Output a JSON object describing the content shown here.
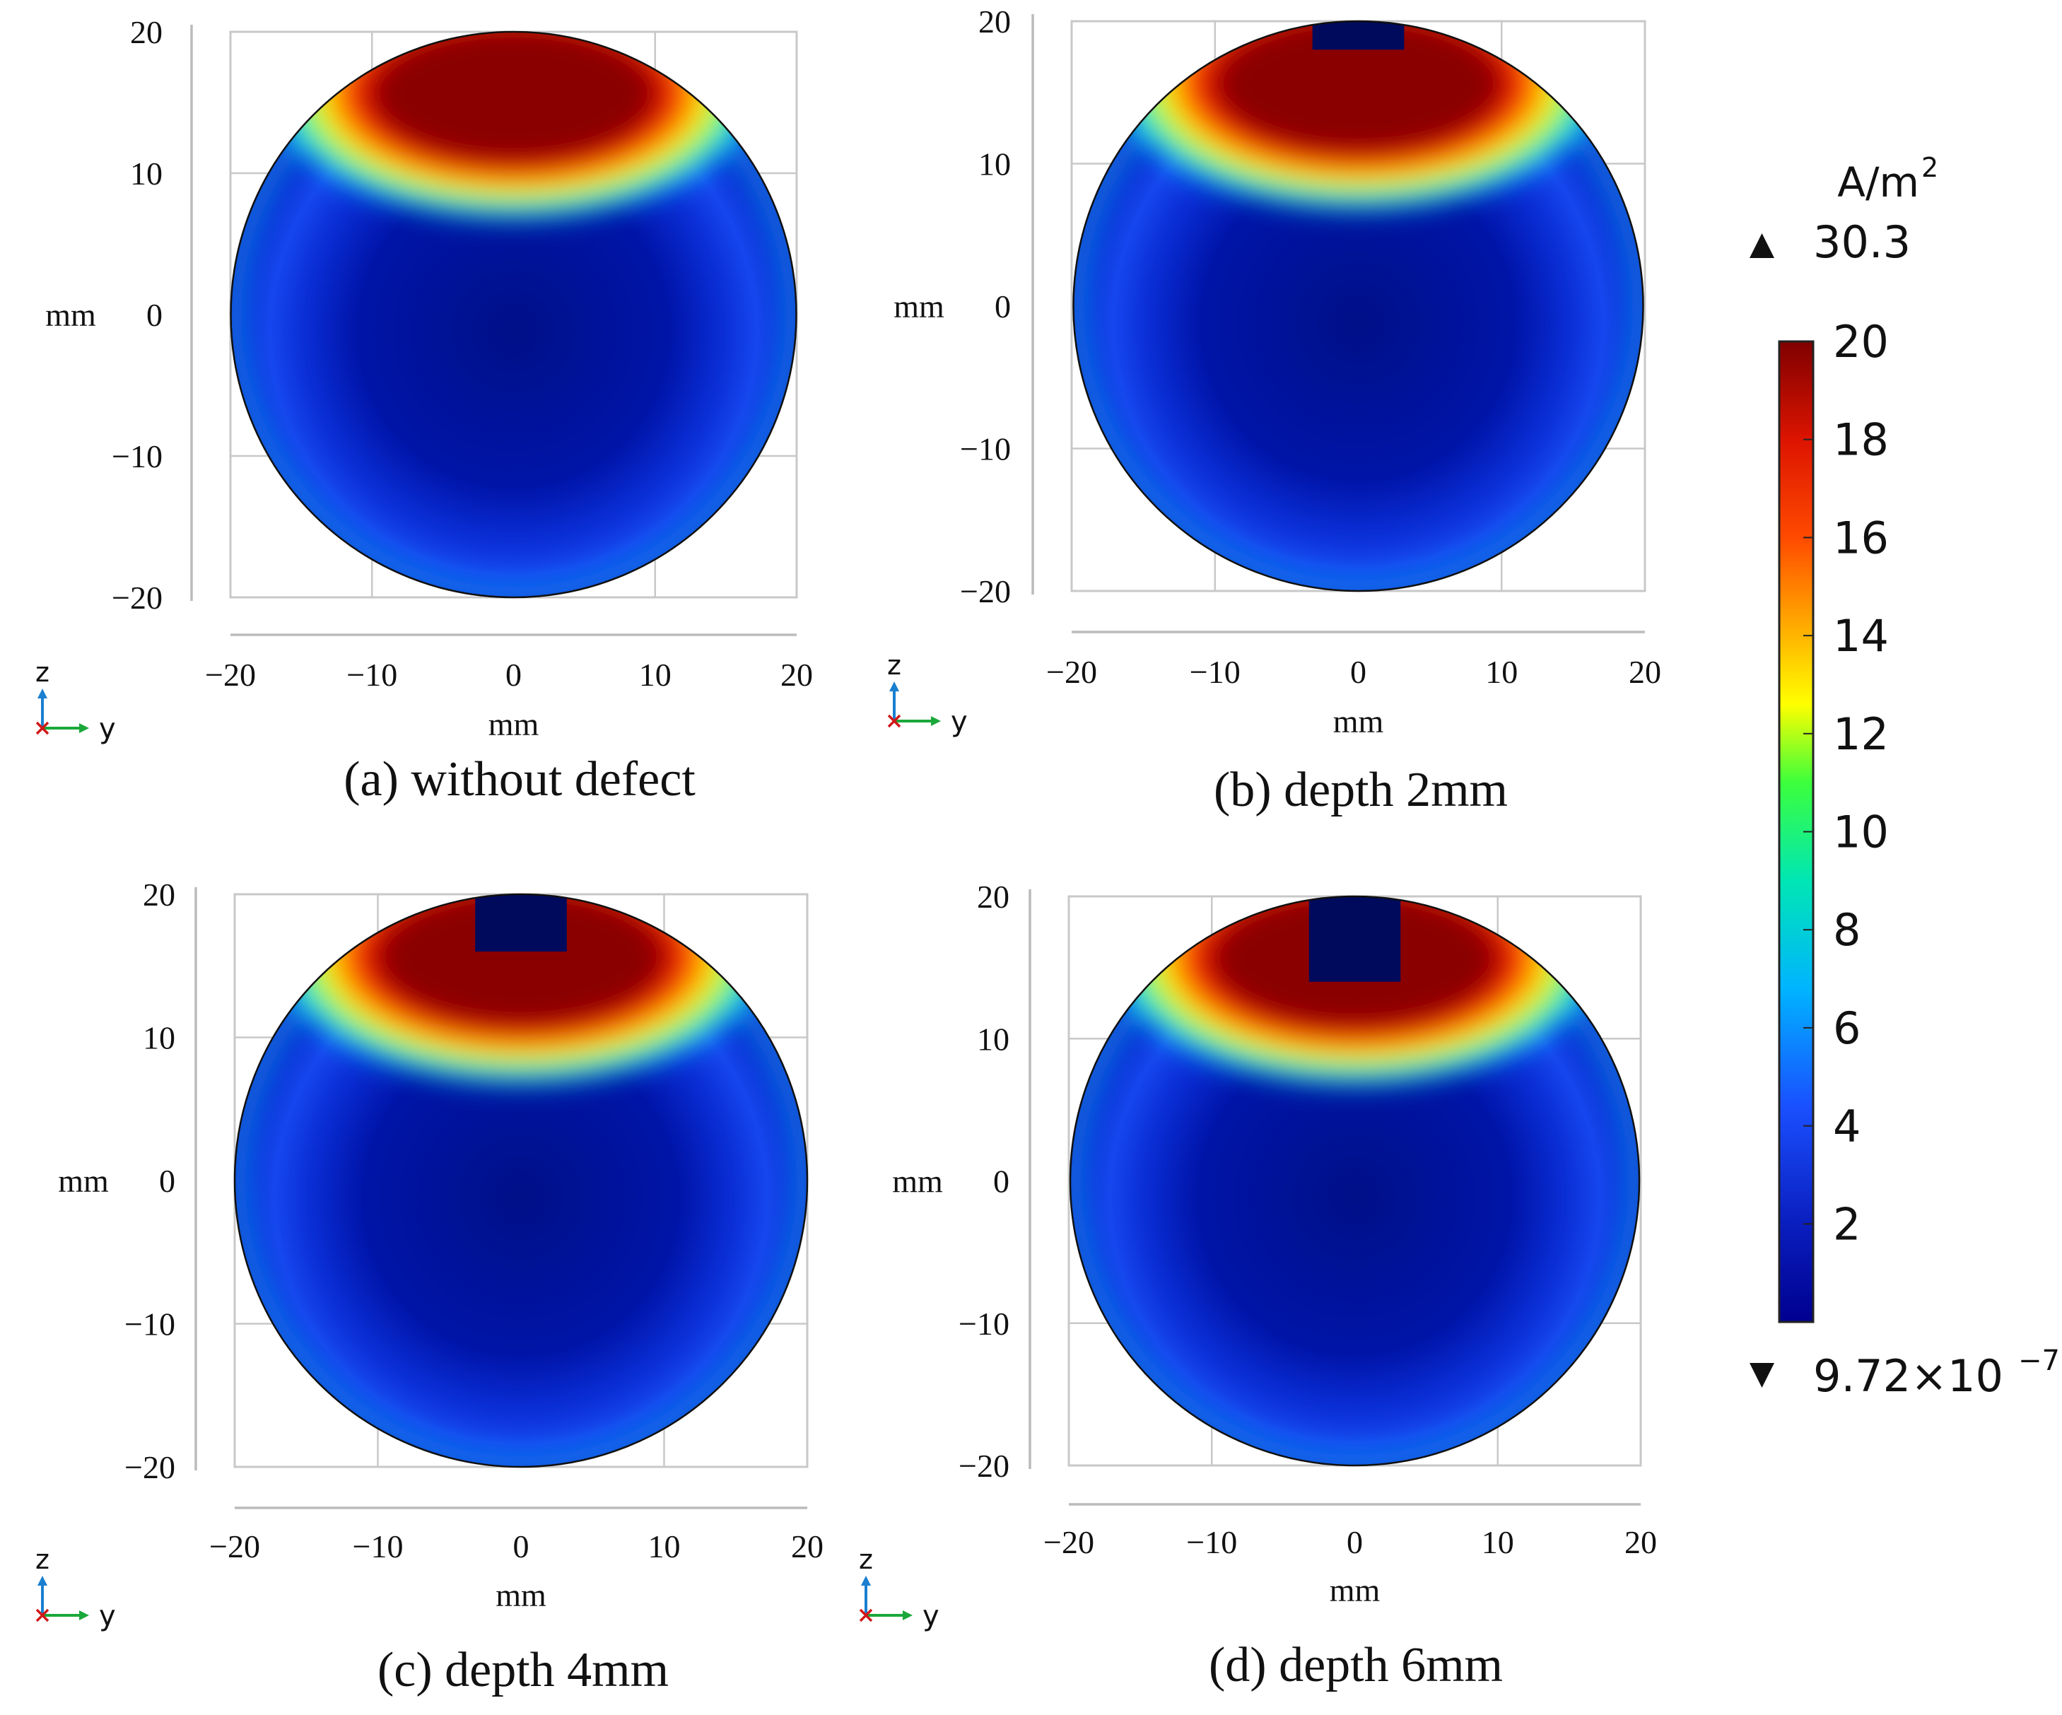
{
  "chart_data": [
    {
      "type": "heatmap",
      "title": "(a) without defect",
      "xlabel": "mm",
      "ylabel": "mm",
      "xlim": [
        -20,
        20
      ],
      "ylim": [
        -20,
        20
      ],
      "xticks": [
        "−20",
        "−10",
        "0",
        "10",
        "20"
      ],
      "yticks": [
        "20",
        "10",
        "0",
        "−10",
        "−20"
      ],
      "grid": true,
      "defect_depth_mm": 0,
      "triad": {
        "up": "z",
        "right": "y",
        "origin": "x"
      }
    },
    {
      "type": "heatmap",
      "title": "(b) depth 2mm",
      "xlabel": "mm",
      "ylabel": "mm",
      "xlim": [
        -20,
        20
      ],
      "ylim": [
        -20,
        20
      ],
      "xticks": [
        "−20",
        "−10",
        "0",
        "10",
        "20"
      ],
      "yticks": [
        "20",
        "10",
        "0",
        "−10",
        "−20"
      ],
      "grid": true,
      "defect_depth_mm": 2,
      "triad": {
        "up": "z",
        "right": "y",
        "origin": "x"
      }
    },
    {
      "type": "heatmap",
      "title": "(c) depth 4mm",
      "xlabel": "mm",
      "ylabel": "mm",
      "xlim": [
        -20,
        20
      ],
      "ylim": [
        -20,
        20
      ],
      "xticks": [
        "−20",
        "−10",
        "0",
        "10",
        "20"
      ],
      "yticks": [
        "20",
        "10",
        "0",
        "−10",
        "−20"
      ],
      "grid": true,
      "defect_depth_mm": 4,
      "triad": {
        "up": "z",
        "right": "y",
        "origin": "x"
      }
    },
    {
      "type": "heatmap",
      "title": "(d) depth 6mm",
      "xlabel": "mm",
      "ylabel": "mm",
      "xlim": [
        -20,
        20
      ],
      "ylim": [
        -20,
        20
      ],
      "xticks": [
        "−20",
        "−10",
        "0",
        "10",
        "20"
      ],
      "yticks": [
        "20",
        "10",
        "0",
        "−10",
        "−20"
      ],
      "grid": true,
      "defect_depth_mm": 6,
      "triad": {
        "up": "z",
        "right": "y",
        "origin": "x"
      }
    }
  ],
  "colorbar": {
    "unit_label": "A/m",
    "unit_exponent": "2",
    "max_label": "30.3",
    "min_label_mantissa": "9.72×10",
    "min_label_exponent": "−7",
    "range": [
      0,
      20
    ],
    "ticks": [
      "20",
      "18",
      "16",
      "14",
      "12",
      "10",
      "8",
      "6",
      "4",
      "2"
    ],
    "tick_values": [
      20,
      18,
      16,
      14,
      12,
      10,
      8,
      6,
      4,
      2
    ],
    "colors": [
      "#7f0000",
      "#d21d0c",
      "#ff6a00",
      "#fff100",
      "#00e07a",
      "#00c8f0",
      "#0064ff",
      "#1230d8",
      "#00008f"
    ]
  }
}
